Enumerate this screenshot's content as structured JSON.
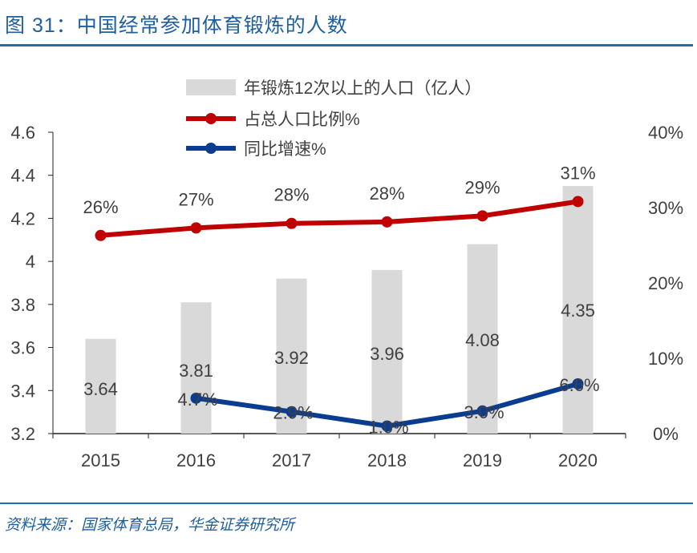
{
  "title": "图 31：中国经常参加体育锻炼的人数",
  "source": "资料来源：国家体育总局，华金证券研究所",
  "chart_data": {
    "type": "bar+line",
    "categories": [
      "2015",
      "2016",
      "2017",
      "2018",
      "2019",
      "2020"
    ],
    "left_axis": {
      "ylim": [
        3.2,
        4.6
      ],
      "ticks": [
        "3.2",
        "3.4",
        "3.6",
        "3.8",
        "4",
        "4.2",
        "4.4",
        "4.6"
      ]
    },
    "right_axis": {
      "ylim": [
        0,
        40
      ],
      "ticks": [
        "0%",
        "10%",
        "20%",
        "30%",
        "40%"
      ]
    },
    "legend_position": "top",
    "grid": false,
    "series": [
      {
        "name": "年锻炼12次以上的人口（亿人）",
        "type": "bar",
        "axis": "left",
        "color": "#d9d9d9",
        "values": [
          3.64,
          3.81,
          3.92,
          3.96,
          4.08,
          4.35
        ],
        "labels": [
          "3.64",
          "3.81",
          "3.92",
          "3.96",
          "4.08",
          "4.35"
        ]
      },
      {
        "name": "占总人口比例%",
        "type": "line",
        "axis": "right",
        "color": "#c00000",
        "values": [
          26.3,
          27.3,
          27.9,
          28.1,
          28.9,
          30.8
        ],
        "labels": [
          "26%",
          "27%",
          "28%",
          "28%",
          "29%",
          "31%"
        ]
      },
      {
        "name": "同比增速%",
        "type": "line",
        "axis": "right",
        "color": "#0a3d91",
        "values": [
          null,
          4.7,
          2.9,
          1.0,
          3.0,
          6.6
        ],
        "labels": [
          "",
          "4.7%",
          "2.9%",
          "1.0%",
          "3.0%",
          "6.6%"
        ]
      }
    ]
  }
}
